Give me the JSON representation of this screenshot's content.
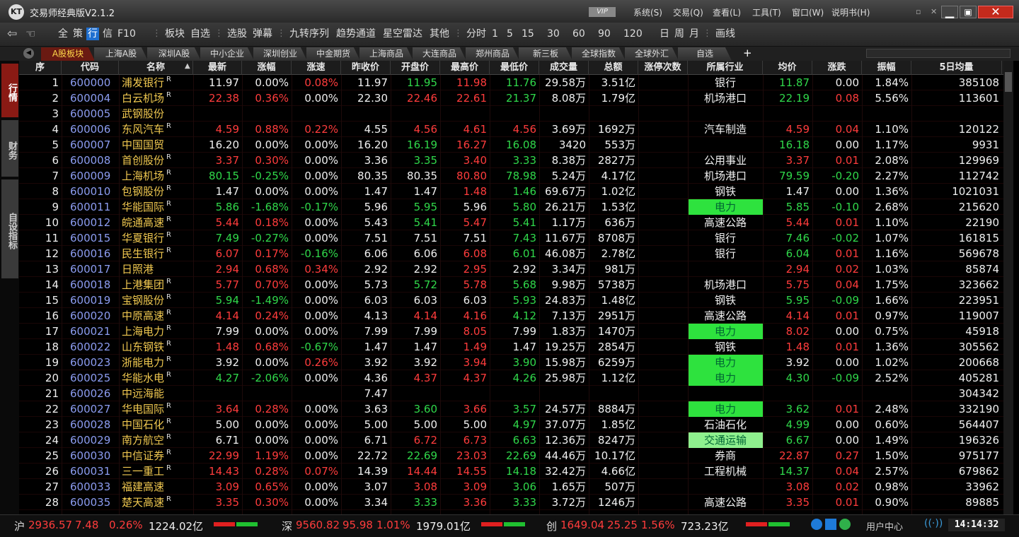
{
  "window": {
    "title": "交易师经典版V2.1.2",
    "vip": "VIP",
    "menus": [
      "系统(S)",
      "交易(Q)",
      "查看(L)",
      "工具(T)",
      "窗口(W)",
      "说明书(H)"
    ]
  },
  "toolbar": {
    "items": [
      "全",
      "策",
      "行",
      "信",
      "F10",
      "板块",
      "自选",
      "选股",
      "弹幕",
      "九转序列",
      "趋势通道",
      "星空雷达",
      "其他",
      "分时",
      "1",
      "5",
      "15",
      "30",
      "60",
      "90",
      "120",
      "日",
      "周",
      "月",
      "画线"
    ],
    "active": 2
  },
  "tabs": {
    "items": [
      "A股板块",
      "上海A股",
      "深圳A股",
      "中小企业",
      "深圳创业",
      "中金期货",
      "上海商品",
      "大连商品",
      "郑州商品",
      "新三板",
      "全球指数",
      "全球外汇",
      "自选"
    ],
    "active": 0
  },
  "side_tabs": [
    "行情",
    "财务",
    "自设指标"
  ],
  "table": {
    "headers": [
      "序",
      "代码",
      "名称",
      "最新",
      "涨幅",
      "涨速",
      "昨收价",
      "开盘价",
      "最高价",
      "最低价",
      "成交量",
      "总额",
      "涨停次数",
      "所属行业",
      "均价",
      "涨跌",
      "振幅",
      "5日均量"
    ],
    "rzrq_label": "R",
    "rzrq": [
      true,
      true,
      false,
      true,
      false,
      true,
      true,
      true,
      true,
      true,
      true,
      true,
      false,
      true,
      true,
      true,
      true,
      true,
      true,
      true,
      false,
      true,
      true,
      true,
      true,
      true,
      false,
      true
    ],
    "industry_bg": {
      "8": "#2ee23e",
      "16": "#2ee23e",
      "18": "#2ee23e",
      "19": "#2ee23e",
      "21": "#2ee23e",
      "23": "#8ef08e"
    },
    "rows": [
      [
        "1",
        "600000",
        "浦发银行",
        "11.97",
        "0.00%",
        "0.08%",
        "11.97",
        "11.95",
        "11.98",
        "11.76",
        "29.58万",
        "3.51亿",
        null,
        "银行",
        "11.87",
        "0.00",
        "1.84%",
        "385108"
      ],
      [
        "2",
        "600004",
        "白云机场",
        "22.38",
        "0.36%",
        "0.00%",
        "22.30",
        "22.46",
        "22.61",
        "21.37",
        "8.08万",
        "1.79亿",
        null,
        "机场港口",
        "22.19",
        "0.08",
        "5.56%",
        "113601"
      ],
      [
        "3",
        "600005",
        "武钢股份",
        null,
        null,
        null,
        null,
        null,
        null,
        null,
        null,
        null,
        null,
        null,
        null,
        null,
        null,
        null
      ],
      [
        "4",
        "600006",
        "东风汽车",
        "4.59",
        "0.88%",
        "0.22%",
        "4.55",
        "4.56",
        "4.61",
        "4.56",
        "3.69万",
        "1692万",
        null,
        "汽车制造",
        "4.59",
        "0.04",
        "1.10%",
        "120122"
      ],
      [
        "5",
        "600007",
        "中国国贸",
        "16.20",
        "0.00%",
        "0.00%",
        "16.20",
        "16.19",
        "16.27",
        "16.08",
        "3420",
        "553万",
        null,
        null,
        "16.18",
        "0.00",
        "1.17%",
        "9931"
      ],
      [
        "6",
        "600008",
        "首创股份",
        "3.37",
        "0.30%",
        "0.00%",
        "3.36",
        "3.35",
        "3.40",
        "3.33",
        "8.38万",
        "2827万",
        null,
        "公用事业",
        "3.37",
        "0.01",
        "2.08%",
        "129969"
      ],
      [
        "7",
        "600009",
        "上海机场",
        "80.15",
        "-0.25%",
        "0.00%",
        "80.35",
        "80.35",
        "80.80",
        "78.98",
        "5.24万",
        "4.17亿",
        null,
        "机场港口",
        "79.59",
        "-0.20",
        "2.27%",
        "112742"
      ],
      [
        "8",
        "600010",
        "包钢股份",
        "1.47",
        "0.00%",
        "0.00%",
        "1.47",
        "1.47",
        "1.48",
        "1.46",
        "69.67万",
        "1.02亿",
        null,
        "钢铁",
        "1.47",
        "0.00",
        "1.36%",
        "1021031"
      ],
      [
        "9",
        "600011",
        "华能国际",
        "5.86",
        "-1.68%",
        "-0.17%",
        "5.96",
        "5.95",
        "5.96",
        "5.80",
        "26.21万",
        "1.53亿",
        null,
        "电力",
        "5.85",
        "-0.10",
        "2.68%",
        "215620"
      ],
      [
        "10",
        "600012",
        "皖通高速",
        "5.44",
        "0.18%",
        "0.00%",
        "5.43",
        "5.41",
        "5.47",
        "5.41",
        "1.17万",
        "636万",
        null,
        "高速公路",
        "5.44",
        "0.01",
        "1.10%",
        "22190"
      ],
      [
        "11",
        "600015",
        "华夏银行",
        "7.49",
        "-0.27%",
        "0.00%",
        "7.51",
        "7.51",
        "7.51",
        "7.43",
        "11.67万",
        "8708万",
        null,
        "银行",
        "7.46",
        "-0.02",
        "1.07%",
        "161815"
      ],
      [
        "12",
        "600016",
        "民生银行",
        "6.07",
        "0.17%",
        "-0.16%",
        "6.06",
        "6.06",
        "6.08",
        "6.01",
        "46.08万",
        "2.78亿",
        null,
        "银行",
        "6.04",
        "0.01",
        "1.16%",
        "569678"
      ],
      [
        "13",
        "600017",
        "日照港",
        "2.94",
        "0.68%",
        "0.34%",
        "2.92",
        "2.92",
        "2.95",
        "2.92",
        "3.34万",
        "981万",
        null,
        null,
        "2.94",
        "0.02",
        "1.03%",
        "85874"
      ],
      [
        "14",
        "600018",
        "上港集团",
        "5.77",
        "0.70%",
        "0.00%",
        "5.73",
        "5.72",
        "5.78",
        "5.68",
        "9.98万",
        "5738万",
        null,
        "机场港口",
        "5.75",
        "0.04",
        "1.75%",
        "323662"
      ],
      [
        "15",
        "600019",
        "宝钢股份",
        "5.94",
        "-1.49%",
        "0.00%",
        "6.03",
        "6.03",
        "6.03",
        "5.93",
        "24.83万",
        "1.48亿",
        null,
        "钢铁",
        "5.95",
        "-0.09",
        "1.66%",
        "223951"
      ],
      [
        "16",
        "600020",
        "中原高速",
        "4.14",
        "0.24%",
        "0.00%",
        "4.13",
        "4.14",
        "4.16",
        "4.12",
        "7.13万",
        "2951万",
        null,
        "高速公路",
        "4.14",
        "0.01",
        "0.97%",
        "119007"
      ],
      [
        "17",
        "600021",
        "上海电力",
        "7.99",
        "0.00%",
        "0.00%",
        "7.99",
        "7.99",
        "8.05",
        "7.99",
        "1.83万",
        "1470万",
        null,
        "电力",
        "8.02",
        "0.00",
        "0.75%",
        "45918"
      ],
      [
        "18",
        "600022",
        "山东钢铁",
        "1.48",
        "0.68%",
        "-0.67%",
        "1.47",
        "1.47",
        "1.49",
        "1.47",
        "19.25万",
        "2854万",
        null,
        "钢铁",
        "1.48",
        "0.01",
        "1.36%",
        "305562"
      ],
      [
        "19",
        "600023",
        "浙能电力",
        "3.92",
        "0.00%",
        "0.26%",
        "3.92",
        "3.92",
        "3.94",
        "3.90",
        "15.98万",
        "6259万",
        null,
        "电力",
        "3.92",
        "0.00",
        "1.02%",
        "200668"
      ],
      [
        "20",
        "600025",
        "华能水电",
        "4.27",
        "-2.06%",
        "0.00%",
        "4.36",
        "4.37",
        "4.37",
        "4.26",
        "25.98万",
        "1.12亿",
        null,
        "电力",
        "4.30",
        "-0.09",
        "2.52%",
        "405281"
      ],
      [
        "21",
        "600026",
        "中远海能",
        null,
        null,
        null,
        "7.47",
        null,
        null,
        null,
        null,
        null,
        null,
        null,
        null,
        null,
        null,
        "304342"
      ],
      [
        "22",
        "600027",
        "华电国际",
        "3.64",
        "0.28%",
        "0.00%",
        "3.63",
        "3.60",
        "3.66",
        "3.57",
        "24.57万",
        "8884万",
        null,
        "电力",
        "3.62",
        "0.01",
        "2.48%",
        "332190"
      ],
      [
        "23",
        "600028",
        "中国石化",
        "5.00",
        "0.00%",
        "0.00%",
        "5.00",
        "5.00",
        "5.00",
        "4.97",
        "37.07万",
        "1.85亿",
        null,
        "石油石化",
        "4.99",
        "0.00",
        "0.60%",
        "564407"
      ],
      [
        "24",
        "600029",
        "南方航空",
        "6.71",
        "0.00%",
        "0.00%",
        "6.71",
        "6.72",
        "6.73",
        "6.63",
        "12.36万",
        "8247万",
        null,
        "交通运输",
        "6.67",
        "0.00",
        "1.49%",
        "196326"
      ],
      [
        "25",
        "600030",
        "中信证券",
        "22.99",
        "1.19%",
        "0.00%",
        "22.72",
        "22.69",
        "23.03",
        "22.69",
        "44.46万",
        "10.17亿",
        null,
        "券商",
        "22.87",
        "0.27",
        "1.50%",
        "975177"
      ],
      [
        "26",
        "600031",
        "三一重工",
        "14.43",
        "0.28%",
        "0.07%",
        "14.39",
        "14.44",
        "14.55",
        "14.18",
        "32.42万",
        "4.66亿",
        null,
        "工程机械",
        "14.37",
        "0.04",
        "2.57%",
        "679862"
      ],
      [
        "27",
        "600033",
        "福建高速",
        "3.09",
        "0.65%",
        "0.00%",
        "3.07",
        "3.08",
        "3.09",
        "3.06",
        "1.65万",
        "507万",
        null,
        null,
        "3.08",
        "0.02",
        "0.98%",
        "33962"
      ],
      [
        "28",
        "600035",
        "楚天高速",
        "3.35",
        "0.30%",
        "0.00%",
        "3.34",
        "3.33",
        "3.36",
        "3.33",
        "3.72万",
        "1246万",
        null,
        "高速公路",
        "3.35",
        "0.01",
        "0.90%",
        "89885"
      ]
    ]
  },
  "status": {
    "indices": [
      [
        "沪",
        "2936.57",
        "7.48",
        "0.26%",
        "1224.02亿"
      ],
      [
        "深",
        "9560.82",
        "95.98",
        "1.01%",
        "1979.01亿"
      ],
      [
        "创",
        "1649.04",
        "25.25",
        "1.56%",
        "723.23亿"
      ]
    ],
    "user_center": "用户中心",
    "time": "14:14:32"
  }
}
